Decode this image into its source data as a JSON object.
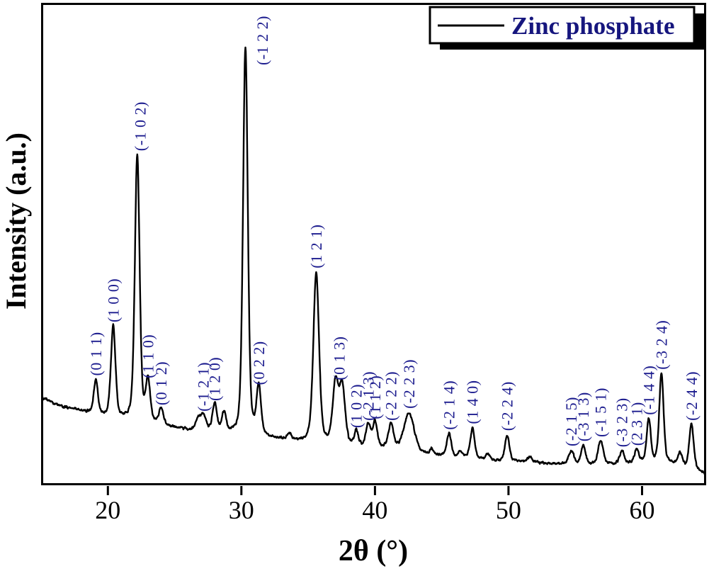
{
  "figure": {
    "background": "#ffffff",
    "trace_color": "#000000",
    "axis_color": "#000000",
    "peak_label_color": "#1b1b8e",
    "legend_text_color": "#16167e"
  },
  "chart_data": {
    "type": "line",
    "title": "",
    "xlabel": "2θ (°)",
    "ylabel": "Intensity (a.u.)",
    "xlim": [
      15,
      64.8
    ],
    "ylim": [
      0,
      100
    ],
    "x_ticks": [
      20,
      30,
      40,
      50,
      60
    ],
    "grid": false,
    "legend": {
      "position": "top-right",
      "entries": [
        {
          "label": "Zinc phosphate",
          "line_color": "#000000"
        }
      ]
    },
    "y_units": "arbitrary units (intensity normalized 0-100 of plot height)",
    "peaks": [
      {
        "hkl": "(0 1 1)",
        "two_theta": 19.1,
        "intensity": 21.8,
        "fwhm": 0.35
      },
      {
        "hkl": "(1 0 0)",
        "two_theta": 20.4,
        "intensity": 32.9,
        "fwhm": 0.4
      },
      {
        "hkl": "(-1 0 2)",
        "two_theta": 22.2,
        "intensity": 68.4,
        "fwhm": 0.42,
        "label_dx": 4
      },
      {
        "hkl": "(1 1 0)",
        "two_theta": 23.0,
        "intensity": 21.3,
        "fwhm": 0.4
      },
      {
        "hkl": "(0 1 2)",
        "two_theta": 24.0,
        "intensity": 15.7,
        "fwhm": 0.4
      },
      {
        "hkl": "",
        "two_theta": 26.75,
        "intensity": 13.6,
        "fwhm": 0.4
      },
      {
        "hkl": "(-1 2 1)",
        "two_theta": 27.15,
        "intensity": 14.4,
        "fwhm": 0.45
      },
      {
        "hkl": "(1 2 0)",
        "two_theta": 28.0,
        "intensity": 16.6,
        "fwhm": 0.4
      },
      {
        "hkl": "",
        "two_theta": 28.7,
        "intensity": 14.9,
        "fwhm": 0.35
      },
      {
        "hkl": "(-1 2 2)",
        "two_theta": 30.3,
        "intensity": 90.7,
        "fwhm": 0.42,
        "label_dx": 24,
        "label_y": 92
      },
      {
        "hkl": "(0 2 2)",
        "two_theta": 31.3,
        "intensity": 19.9,
        "fwhm": 0.4
      },
      {
        "hkl": "",
        "two_theta": 33.6,
        "intensity": 10.4,
        "fwhm": 0.35
      },
      {
        "hkl": "(1 2 1)",
        "two_theta": 35.6,
        "intensity": 44.1,
        "fwhm": 0.5
      },
      {
        "hkl": "(0 1 3)",
        "two_theta": 37.05,
        "intensity": 20.9,
        "fwhm": 0.5,
        "label_dx": 5
      },
      {
        "hkl": "",
        "two_theta": 37.55,
        "intensity": 20.0,
        "fwhm": 0.5
      },
      {
        "hkl": "(1 0 2)",
        "two_theta": 38.6,
        "intensity": 11.0,
        "fwhm": 0.35
      },
      {
        "hkl": "(-2 1 3)",
        "two_theta": 39.5,
        "intensity": 12.5,
        "fwhm": 0.4
      },
      {
        "hkl": "(1 1 2)",
        "two_theta": 40.0,
        "intensity": 12.8,
        "fwhm": 0.4
      },
      {
        "hkl": "(-2 2 2)",
        "two_theta": 41.2,
        "intensity": 12.5,
        "fwhm": 0.45
      },
      {
        "hkl": "(-2 2 3)",
        "two_theta": 42.55,
        "intensity": 15.0,
        "fwhm": 0.9
      },
      {
        "hkl": "",
        "two_theta": 44.25,
        "intensity": 7.4,
        "fwhm": 0.35
      },
      {
        "hkl": "(-2 1 4)",
        "two_theta": 45.55,
        "intensity": 10.6,
        "fwhm": 0.4
      },
      {
        "hkl": "",
        "two_theta": 46.4,
        "intensity": 6.9,
        "fwhm": 0.35
      },
      {
        "hkl": "(1 4 0)",
        "two_theta": 47.3,
        "intensity": 11.8,
        "fwhm": 0.38
      },
      {
        "hkl": "",
        "two_theta": 48.45,
        "intensity": 6.4,
        "fwhm": 0.35
      },
      {
        "hkl": "(-2 2 4)",
        "two_theta": 49.9,
        "intensity": 10.4,
        "fwhm": 0.38
      },
      {
        "hkl": "",
        "two_theta": 51.6,
        "intensity": 5.9,
        "fwhm": 0.4
      },
      {
        "hkl": "(-2 1 5)",
        "two_theta": 54.7,
        "intensity": 7.2,
        "fwhm": 0.45
      },
      {
        "hkl": "(-3 1 3)",
        "two_theta": 55.6,
        "intensity": 8.2,
        "fwhm": 0.4
      },
      {
        "hkl": "(-1 5 1)",
        "two_theta": 56.9,
        "intensity": 9.1,
        "fwhm": 0.45
      },
      {
        "hkl": "(-3 2 3)",
        "two_theta": 58.5,
        "intensity": 7.0,
        "fwhm": 0.4
      },
      {
        "hkl": "(2 3 1)",
        "two_theta": 59.6,
        "intensity": 7.3,
        "fwhm": 0.35
      },
      {
        "hkl": "(-1 4 4)",
        "two_theta": 60.5,
        "intensity": 13.7,
        "fwhm": 0.35
      },
      {
        "hkl": "(-3 2 4)",
        "two_theta": 61.45,
        "intensity": 23.1,
        "fwhm": 0.38
      },
      {
        "hkl": "",
        "two_theta": 62.85,
        "intensity": 6.6,
        "fwhm": 0.4
      },
      {
        "hkl": "(-2 4 4)",
        "two_theta": 63.7,
        "intensity": 12.5,
        "fwhm": 0.4
      }
    ],
    "baseline": [
      [
        15,
        18.3
      ],
      [
        16,
        16.9
      ],
      [
        17,
        16.0
      ],
      [
        18,
        15.4
      ],
      [
        19,
        14.9
      ],
      [
        20,
        14.2
      ],
      [
        21,
        13.7
      ],
      [
        22,
        13.3
      ],
      [
        23,
        13.0
      ],
      [
        24,
        12.4
      ],
      [
        25,
        11.9
      ],
      [
        26,
        11.5
      ],
      [
        27,
        11.2
      ],
      [
        28,
        10.9
      ],
      [
        29,
        10.6
      ],
      [
        30,
        10.3
      ],
      [
        31,
        10.1
      ],
      [
        32,
        9.8
      ],
      [
        33,
        9.5
      ],
      [
        34,
        9.2
      ],
      [
        35,
        8.9
      ],
      [
        36,
        8.6
      ],
      [
        37,
        8.4
      ],
      [
        38,
        8.1
      ],
      [
        39,
        7.9
      ],
      [
        40,
        7.7
      ],
      [
        41,
        7.5
      ],
      [
        42,
        7.1
      ],
      [
        43,
        6.6
      ],
      [
        44,
        6.3
      ],
      [
        45,
        6.0
      ],
      [
        46,
        5.8
      ],
      [
        47,
        5.6
      ],
      [
        48,
        5.4
      ],
      [
        49,
        5.2
      ],
      [
        50,
        5.1
      ],
      [
        51,
        4.9
      ],
      [
        52,
        4.7
      ],
      [
        53,
        4.5
      ],
      [
        54,
        4.4
      ],
      [
        55,
        4.3
      ],
      [
        56,
        4.3
      ],
      [
        57,
        4.3
      ],
      [
        58,
        4.4
      ],
      [
        59,
        4.6
      ],
      [
        60,
        4.8
      ],
      [
        61,
        4.8
      ],
      [
        62,
        4.6
      ],
      [
        63,
        3.8
      ],
      [
        64,
        3.0
      ],
      [
        64.8,
        2.3
      ]
    ],
    "noise_amplitude": 0.55
  }
}
